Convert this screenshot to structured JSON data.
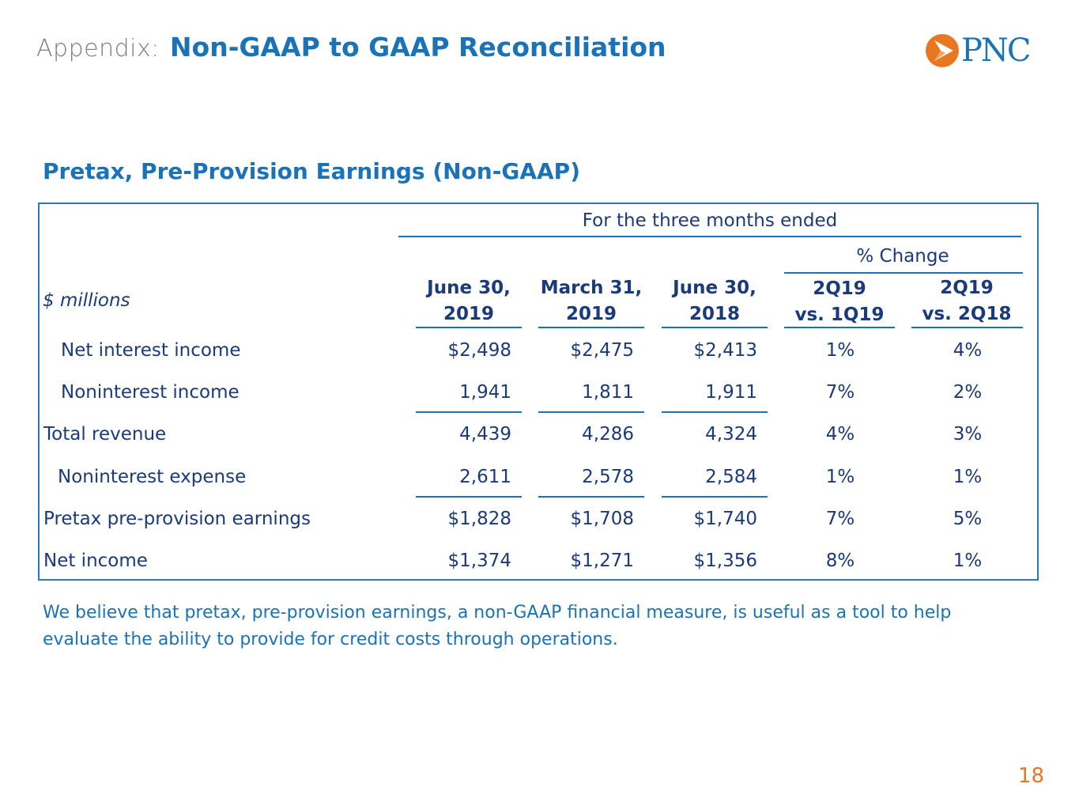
{
  "header": {
    "appendix_label": "Appendix:",
    "title": "Non-GAAP to GAAP Reconciliation"
  },
  "logo": {
    "text": "PNC",
    "icon": "pnc-logo-icon",
    "brand_orange": "#e87722",
    "brand_blue": "#1a72b8"
  },
  "section_title": "Pretax, Pre-Provision Earnings  (Non-GAAP)",
  "table": {
    "period_header": "For the three months ended",
    "change_header": "% Change",
    "units_label": "$ millions",
    "columns": [
      {
        "line1": "June 30,",
        "line2": "2019"
      },
      {
        "line1": "March 31,",
        "line2": "2019"
      },
      {
        "line1": "June 30,",
        "line2": "2018"
      },
      {
        "line1": "2Q19",
        "line2": "vs. 1Q19"
      },
      {
        "line1": "2Q19",
        "line2": "vs. 2Q18"
      }
    ],
    "rows": [
      {
        "label": "Net interest income",
        "values": [
          "$2,498",
          "$2,475",
          "$2,413",
          "1%",
          "4%"
        ]
      },
      {
        "label": "Noninterest income",
        "values": [
          "1,941",
          "1,811",
          "1,911",
          "7%",
          "2%"
        ]
      },
      {
        "label": "Total revenue",
        "values": [
          "4,439",
          "4,286",
          "4,324",
          "4%",
          "3%"
        ]
      },
      {
        "label": "Noninterest expense",
        "values": [
          "2,611",
          "2,578",
          "2,584",
          "1%",
          "1%"
        ]
      },
      {
        "label": "Pretax pre-provision earnings",
        "values": [
          "$1,828",
          "$1,708",
          "$1,740",
          "7%",
          "5%"
        ]
      },
      {
        "label": "Net income",
        "values": [
          "$1,374",
          "$1,271",
          "$1,356",
          "8%",
          "1%"
        ]
      }
    ]
  },
  "footnote": "We believe that pretax, pre-provision earnings, a non-GAAP financial measure, is useful as a tool to help evaluate the ability to provide for credit costs through operations.",
  "page_number": "18"
}
